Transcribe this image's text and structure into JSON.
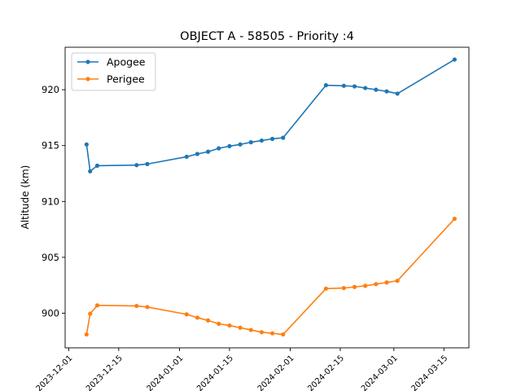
{
  "chart_data": {
    "type": "line",
    "title": "OBJECT A - 58505 - Priority :4",
    "xlabel": "",
    "ylabel": "Altitude (km)",
    "ylim": [
      896.9,
      923.8
    ],
    "xlim": [
      "2023-11-30",
      "2024-03-22"
    ],
    "yticks": [
      900,
      905,
      910,
      915,
      920
    ],
    "xticks": [
      "2023-12-01",
      "2023-12-15",
      "2024-01-01",
      "2024-01-15",
      "2024-02-01",
      "2024-02-15",
      "2024-03-01",
      "2024-03-15"
    ],
    "x_tick_labels": [
      "2023-12-01",
      "2023-12-15",
      "2024-01-01",
      "2024-01-15",
      "2024-02-01",
      "2024-02-15",
      "2024-03-01",
      "2024-03-15"
    ],
    "grid": false,
    "legend": "top-left",
    "series": [
      {
        "name": "Apogee",
        "color": "#1f77b4",
        "points": [
          [
            "2023-12-06",
            915.1
          ],
          [
            "2023-12-07",
            912.7
          ],
          [
            "2023-12-09",
            913.2
          ],
          [
            "2023-12-20",
            913.25
          ],
          [
            "2023-12-23",
            913.35
          ],
          [
            "2024-01-03",
            914.0
          ],
          [
            "2024-01-06",
            914.25
          ],
          [
            "2024-01-09",
            914.45
          ],
          [
            "2024-01-12",
            914.75
          ],
          [
            "2024-01-15",
            914.95
          ],
          [
            "2024-01-18",
            915.1
          ],
          [
            "2024-01-21",
            915.3
          ],
          [
            "2024-01-24",
            915.45
          ],
          [
            "2024-01-27",
            915.6
          ],
          [
            "2024-01-30",
            915.7
          ],
          [
            "2024-02-11",
            920.4
          ],
          [
            "2024-02-16",
            920.35
          ],
          [
            "2024-02-19",
            920.3
          ],
          [
            "2024-02-22",
            920.15
          ],
          [
            "2024-02-25",
            920.0
          ],
          [
            "2024-02-28",
            919.85
          ],
          [
            "2024-03-02",
            919.65
          ],
          [
            "2024-03-18",
            922.7
          ]
        ]
      },
      {
        "name": "Perigee",
        "color": "#ff7f0e",
        "points": [
          [
            "2023-12-06",
            898.1
          ],
          [
            "2023-12-07",
            899.95
          ],
          [
            "2023-12-09",
            900.7
          ],
          [
            "2023-12-20",
            900.65
          ],
          [
            "2023-12-23",
            900.55
          ],
          [
            "2024-01-03",
            899.9
          ],
          [
            "2024-01-06",
            899.6
          ],
          [
            "2024-01-09",
            899.35
          ],
          [
            "2024-01-12",
            899.05
          ],
          [
            "2024-01-15",
            898.9
          ],
          [
            "2024-01-18",
            898.7
          ],
          [
            "2024-01-21",
            898.5
          ],
          [
            "2024-01-24",
            898.3
          ],
          [
            "2024-01-27",
            898.2
          ],
          [
            "2024-01-30",
            898.1
          ],
          [
            "2024-02-11",
            902.2
          ],
          [
            "2024-02-16",
            902.25
          ],
          [
            "2024-02-19",
            902.35
          ],
          [
            "2024-02-22",
            902.45
          ],
          [
            "2024-02-25",
            902.6
          ],
          [
            "2024-02-28",
            902.75
          ],
          [
            "2024-03-02",
            902.9
          ],
          [
            "2024-03-18",
            908.45
          ]
        ]
      }
    ]
  }
}
